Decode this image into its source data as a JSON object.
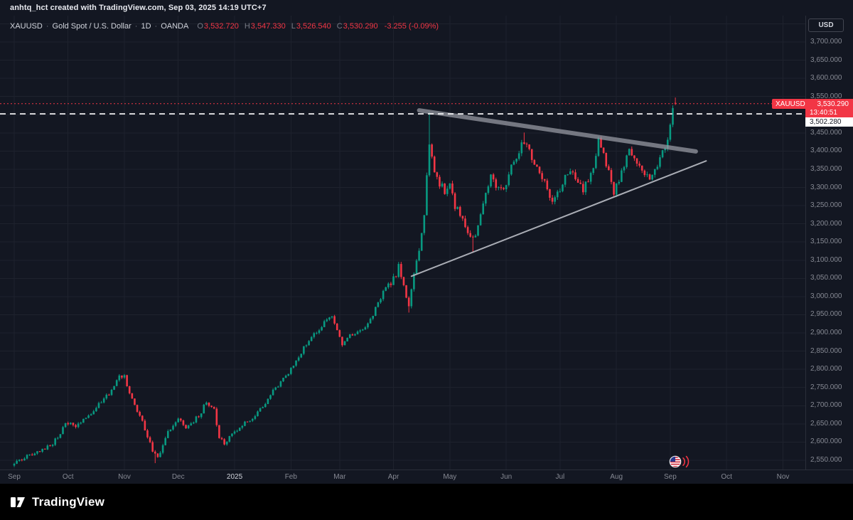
{
  "header": {
    "attribution": "anhtq_hct created with TradingView.com, Sep 03, 2025 14:19 UTC+7"
  },
  "toolbar": {
    "currency_button": "USD"
  },
  "legend": {
    "symbol": "XAUUSD",
    "separator": "·",
    "description": "Gold Spot / U.S. Dollar",
    "interval": "1D",
    "exchange": "OANDA",
    "ohlc": {
      "o_label": "O",
      "o": "3,532.720",
      "h_label": "H",
      "h": "3,547.330",
      "l_label": "L",
      "l": "3,526.540",
      "c_label": "C",
      "c": "3,530.290",
      "change": "-3.255 (-0.09%)"
    }
  },
  "badges": {
    "ticker_label": "XAUUSD",
    "ticker_price": "3,530.290",
    "countdown": "13:40:51",
    "level": "3,502.280"
  },
  "footer": {
    "brand": "TradingView"
  },
  "colors": {
    "bg": "#131722",
    "grid": "#1e222d",
    "up": "#089981",
    "down": "#f23645",
    "text": "#d1d4dc",
    "muted": "#787b86",
    "axis_text": "#868993",
    "dashed_line": "#ffffff",
    "trendline_thick": "#9598a1",
    "trendline_thin": "#b2b5be"
  },
  "chart_data": {
    "type": "candlestick",
    "title": "XAUUSD Gold Spot / U.S. Dollar, 1D, OANDA",
    "symbol": "XAUUSD",
    "interval": "1D",
    "exchange": "OANDA",
    "days_total": 259,
    "y_axis": {
      "unit": "USD",
      "tick_step": 50,
      "ticks": [
        3700,
        3650,
        3600,
        3550,
        3500,
        3450,
        3400,
        3350,
        3300,
        3250,
        3200,
        3150,
        3100,
        3050,
        3000,
        2950,
        2900,
        2850,
        2800,
        2750,
        2700,
        2650,
        2600,
        2550
      ]
    },
    "x_axis": {
      "months": [
        {
          "text": "Sep",
          "day": 0
        },
        {
          "text": "Oct",
          "day": 21
        },
        {
          "text": "Nov",
          "day": 43
        },
        {
          "text": "Dec",
          "day": 64
        },
        {
          "text": "2025",
          "day": 86,
          "emphasis": true
        },
        {
          "text": "Feb",
          "day": 108
        },
        {
          "text": "Mar",
          "day": 127
        },
        {
          "text": "Apr",
          "day": 148
        },
        {
          "text": "May",
          "day": 170
        },
        {
          "text": "Jun",
          "day": 192
        },
        {
          "text": "Jul",
          "day": 213
        },
        {
          "text": "Aug",
          "day": 235
        },
        {
          "text": "Sep",
          "day": 256
        },
        {
          "text": "Oct",
          "day": 278
        },
        {
          "text": "Nov",
          "day": 300
        }
      ]
    },
    "last_bar": {
      "open": 3532.72,
      "high": 3547.33,
      "low": 3526.54,
      "close": 3530.29,
      "change": -3.255,
      "change_pct": -0.09
    },
    "levels": {
      "current_price": 3530.29,
      "dashed_line": 3502.28
    },
    "event_marker": {
      "type": "us-economic-event",
      "day": 258
    },
    "trendlines": [
      {
        "name": "trendline-upper-descending",
        "from_day": 158,
        "from_price": 3512,
        "to_day": 266,
        "to_price": 3399,
        "color": "#9598a1",
        "width": 6,
        "opacity": 0.75
      },
      {
        "name": "trendline-lower-ascending",
        "from_day": 155,
        "from_price": 3056,
        "to_day": 270,
        "to_price": 3373,
        "color": "#b2b5be",
        "width": 2,
        "opacity": 0.95
      }
    ],
    "wick_spikes": [
      {
        "day": 55,
        "low": 2542
      },
      {
        "day": 154,
        "low": 2956
      },
      {
        "day": 162,
        "high": 3508
      },
      {
        "day": 179,
        "low": 3122
      },
      {
        "day": 199,
        "high": 3451
      },
      {
        "day": 228,
        "high": 3440
      }
    ],
    "price_path_anchors": [
      [
        0,
        2538
      ],
      [
        3,
        2553
      ],
      [
        6,
        2563
      ],
      [
        9,
        2572
      ],
      [
        12,
        2582
      ],
      [
        15,
        2596
      ],
      [
        18,
        2625
      ],
      [
        20,
        2655
      ],
      [
        22,
        2652
      ],
      [
        24,
        2642
      ],
      [
        26,
        2655
      ],
      [
        29,
        2672
      ],
      [
        32,
        2698
      ],
      [
        35,
        2718
      ],
      [
        38,
        2742
      ],
      [
        41,
        2782
      ],
      [
        43,
        2780
      ],
      [
        45,
        2738
      ],
      [
        47,
        2698
      ],
      [
        50,
        2655
      ],
      [
        52,
        2618
      ],
      [
        54,
        2572
      ],
      [
        56,
        2558
      ],
      [
        58,
        2592
      ],
      [
        60,
        2628
      ],
      [
        62,
        2648
      ],
      [
        64,
        2662
      ],
      [
        67,
        2638
      ],
      [
        70,
        2656
      ],
      [
        73,
        2684
      ],
      [
        75,
        2710
      ],
      [
        78,
        2688
      ],
      [
        80,
        2612
      ],
      [
        82,
        2592
      ],
      [
        84,
        2618
      ],
      [
        86,
        2628
      ],
      [
        89,
        2645
      ],
      [
        92,
        2662
      ],
      [
        95,
        2682
      ],
      [
        98,
        2708
      ],
      [
        101,
        2738
      ],
      [
        104,
        2762
      ],
      [
        107,
        2790
      ],
      [
        110,
        2822
      ],
      [
        113,
        2860
      ],
      [
        116,
        2886
      ],
      [
        119,
        2912
      ],
      [
        122,
        2938
      ],
      [
        124,
        2948
      ],
      [
        126,
        2912
      ],
      [
        128,
        2866
      ],
      [
        131,
        2892
      ],
      [
        134,
        2908
      ],
      [
        137,
        2918
      ],
      [
        140,
        2952
      ],
      [
        143,
        2998
      ],
      [
        146,
        3032
      ],
      [
        148,
        3048
      ],
      [
        150,
        3082
      ],
      [
        152,
        3022
      ],
      [
        154,
        2976
      ],
      [
        156,
        3058
      ],
      [
        158,
        3132
      ],
      [
        160,
        3225
      ],
      [
        162,
        3428
      ],
      [
        164,
        3345
      ],
      [
        166,
        3308
      ],
      [
        168,
        3292
      ],
      [
        170,
        3305
      ],
      [
        172,
        3242
      ],
      [
        174,
        3232
      ],
      [
        176,
        3192
      ],
      [
        178,
        3162
      ],
      [
        180,
        3158
      ],
      [
        182,
        3222
      ],
      [
        184,
        3282
      ],
      [
        186,
        3338
      ],
      [
        188,
        3302
      ],
      [
        190,
        3292
      ],
      [
        192,
        3312
      ],
      [
        194,
        3352
      ],
      [
        196,
        3382
      ],
      [
        198,
        3425
      ],
      [
        200,
        3418
      ],
      [
        202,
        3382
      ],
      [
        204,
        3352
      ],
      [
        206,
        3332
      ],
      [
        208,
        3295
      ],
      [
        210,
        3252
      ],
      [
        212,
        3282
      ],
      [
        214,
        3312
      ],
      [
        216,
        3338
      ],
      [
        218,
        3352
      ],
      [
        220,
        3312
      ],
      [
        222,
        3295
      ],
      [
        224,
        3322
      ],
      [
        226,
        3362
      ],
      [
        228,
        3432
      ],
      [
        230,
        3395
      ],
      [
        232,
        3338
      ],
      [
        234,
        3285
      ],
      [
        236,
        3322
      ],
      [
        238,
        3362
      ],
      [
        240,
        3398
      ],
      [
        242,
        3372
      ],
      [
        244,
        3352
      ],
      [
        246,
        3338
      ],
      [
        248,
        3332
      ],
      [
        250,
        3348
      ],
      [
        252,
        3372
      ],
      [
        254,
        3412
      ],
      [
        255,
        3442
      ],
      [
        256,
        3476
      ],
      [
        257,
        3522
      ],
      [
        258,
        3530.29
      ]
    ]
  }
}
